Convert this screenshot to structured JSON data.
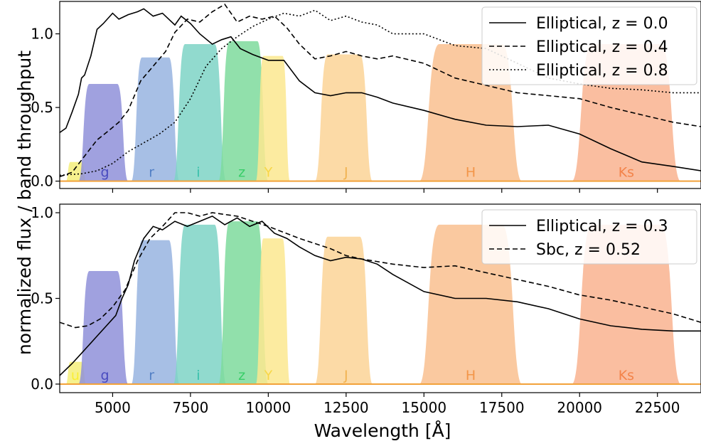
{
  "xlabel": "Wavelength [Å]",
  "ylabel": "normalized flux / band throughput",
  "chart_data": [
    {
      "type": "line",
      "panel": "top",
      "xlim": [
        3300,
        23900
      ],
      "ylim": [
        -0.05,
        1.22
      ],
      "xticks": [
        5000,
        7500,
        10000,
        12500,
        15000,
        17500,
        20000,
        22500
      ],
      "yticks": [
        0.0,
        0.5,
        1.0
      ],
      "ytick_labels": [
        "0.0",
        "0.5",
        "1.0"
      ],
      "legend_placement": "top-right",
      "grid": false,
      "bands": [
        {
          "name": "u",
          "label": "",
          "color": "#f5ee7a",
          "center": 3800,
          "low": 3500,
          "high": 4150,
          "level": 0.13
        },
        {
          "name": "g",
          "label": "g",
          "color": "#8f90d9",
          "center": 4750,
          "low": 3900,
          "high": 5500,
          "level": 0.66
        },
        {
          "name": "r",
          "label": "r",
          "color": "#98b4e0",
          "center": 6250,
          "low": 5600,
          "high": 7150,
          "level": 0.84
        },
        {
          "name": "i",
          "label": "i",
          "color": "#7ed3c6",
          "center": 7750,
          "low": 6950,
          "high": 8650,
          "level": 0.93
        },
        {
          "name": "z",
          "label": "z",
          "color": "#7edb9c",
          "center": 9150,
          "low": 8400,
          "high": 10000,
          "level": 0.95
        },
        {
          "name": "Y",
          "label": "Y",
          "color": "#fbe88f",
          "center": 10000,
          "low": 9600,
          "high": 10700,
          "level": 0.85
        },
        {
          "name": "J",
          "label": "J",
          "color": "#fbd497",
          "center": 12500,
          "low": 11500,
          "high": 13350,
          "level": 0.86
        },
        {
          "name": "H",
          "label": "H",
          "color": "#f9bf8f",
          "center": 16500,
          "low": 14850,
          "high": 18150,
          "level": 0.93
        },
        {
          "name": "Ks",
          "label": "Ks",
          "color": "#f9b38f",
          "center": 21500,
          "low": 19750,
          "high": 23250,
          "level": 0.93
        }
      ],
      "series": [
        {
          "name": "Elliptical, z = 0.0",
          "style": "solid",
          "x": [
            3300,
            3500,
            3700,
            3900,
            4000,
            4100,
            4300,
            4500,
            4700,
            5000,
            5200,
            5500,
            5800,
            6000,
            6300,
            6600,
            7000,
            7200,
            7500,
            7800,
            8200,
            8500,
            8800,
            9100,
            9500,
            10000,
            10500,
            11000,
            11500,
            12000,
            12500,
            13000,
            13500,
            14000,
            15000,
            16000,
            17000,
            18000,
            19000,
            20000,
            21000,
            22000,
            23000,
            23900
          ],
          "y": [
            0.33,
            0.36,
            0.47,
            0.59,
            0.7,
            0.72,
            0.85,
            1.03,
            1.07,
            1.14,
            1.1,
            1.13,
            1.15,
            1.17,
            1.12,
            1.14,
            1.06,
            1.12,
            1.07,
            1.0,
            0.93,
            0.96,
            0.98,
            0.9,
            0.86,
            0.82,
            0.82,
            0.68,
            0.6,
            0.58,
            0.6,
            0.6,
            0.57,
            0.53,
            0.48,
            0.42,
            0.38,
            0.37,
            0.38,
            0.32,
            0.22,
            0.13,
            0.1,
            0.07
          ]
        },
        {
          "name": "Elliptical, z = 0.4",
          "style": "dashed",
          "x": [
            3300,
            3700,
            4100,
            4500,
            4800,
            5200,
            5500,
            5900,
            6300,
            6700,
            7000,
            7400,
            7800,
            8200,
            8600,
            9000,
            9400,
            9800,
            10200,
            10600,
            11000,
            11500,
            12000,
            12500,
            13000,
            13500,
            14000,
            15000,
            16000,
            17000,
            18000,
            19000,
            20000,
            21000,
            22000,
            23000,
            23900
          ],
          "y": [
            0.03,
            0.06,
            0.17,
            0.28,
            0.33,
            0.4,
            0.48,
            0.68,
            0.78,
            0.88,
            1.01,
            1.1,
            1.08,
            1.15,
            1.2,
            1.08,
            1.12,
            1.1,
            1.12,
            1.04,
            0.93,
            0.83,
            0.85,
            0.88,
            0.85,
            0.83,
            0.85,
            0.8,
            0.7,
            0.65,
            0.6,
            0.58,
            0.56,
            0.5,
            0.45,
            0.4,
            0.37
          ]
        },
        {
          "name": "Elliptical, z = 0.8",
          "style": "dotted",
          "x": [
            3300,
            4000,
            4500,
            5000,
            5500,
            6000,
            6500,
            7000,
            7500,
            8000,
            8500,
            9000,
            9500,
            10000,
            10500,
            11000,
            11500,
            12000,
            12500,
            13000,
            13500,
            14000,
            15000,
            16000,
            17000,
            18000,
            19000,
            20000,
            21000,
            22000,
            23000,
            23900
          ],
          "y": [
            0.04,
            0.05,
            0.07,
            0.12,
            0.2,
            0.26,
            0.32,
            0.4,
            0.56,
            0.78,
            0.9,
            0.98,
            1.05,
            1.1,
            1.14,
            1.12,
            1.16,
            1.09,
            1.12,
            1.08,
            1.06,
            1.0,
            1.0,
            0.92,
            0.9,
            0.8,
            0.7,
            0.66,
            0.63,
            0.62,
            0.6,
            0.6
          ]
        }
      ]
    },
    {
      "type": "line",
      "panel": "bottom",
      "xlim": [
        3300,
        23900
      ],
      "ylim": [
        -0.05,
        1.05
      ],
      "xticks": [
        5000,
        7500,
        10000,
        12500,
        15000,
        17500,
        20000,
        22500
      ],
      "xtick_labels": [
        "5000",
        "7500",
        "10000",
        "12500",
        "15000",
        "17500",
        "20000",
        "22500"
      ],
      "yticks": [
        0.0,
        0.5,
        1.0
      ],
      "ytick_labels": [
        "0.0",
        "0.5",
        "1.0"
      ],
      "legend_placement": "top-right",
      "grid": false,
      "bands": [
        {
          "name": "u",
          "label": "u",
          "color": "#f5ee7a",
          "center": 3800,
          "low": 3500,
          "high": 4150,
          "level": 0.13
        },
        {
          "name": "g",
          "label": "g",
          "color": "#8f90d9",
          "center": 4750,
          "low": 3900,
          "high": 5500,
          "level": 0.66
        },
        {
          "name": "r",
          "label": "r",
          "color": "#98b4e0",
          "center": 6250,
          "low": 5600,
          "high": 7150,
          "level": 0.84
        },
        {
          "name": "i",
          "label": "i",
          "color": "#7ed3c6",
          "center": 7750,
          "low": 6950,
          "high": 8650,
          "level": 0.93
        },
        {
          "name": "z",
          "label": "z",
          "color": "#7edb9c",
          "center": 9150,
          "low": 8400,
          "high": 10000,
          "level": 0.95
        },
        {
          "name": "Y",
          "label": "Y",
          "color": "#fbe88f",
          "center": 10000,
          "low": 9600,
          "high": 10700,
          "level": 0.85
        },
        {
          "name": "J",
          "label": "J",
          "color": "#fbd497",
          "center": 12500,
          "low": 11500,
          "high": 13350,
          "level": 0.86
        },
        {
          "name": "H",
          "label": "H",
          "color": "#f9bf8f",
          "center": 16500,
          "low": 14850,
          "high": 18150,
          "level": 0.93
        },
        {
          "name": "Ks",
          "label": "Ks",
          "color": "#f9b38f",
          "center": 21500,
          "low": 19750,
          "high": 23250,
          "level": 0.93
        }
      ],
      "series": [
        {
          "name": "Elliptical, z = 0.3",
          "style": "solid",
          "x": [
            3300,
            3700,
            4000,
            4200,
            4500,
            4800,
            5100,
            5300,
            5500,
            5700,
            6000,
            6300,
            6600,
            7000,
            7400,
            7800,
            8200,
            8600,
            9000,
            9400,
            9800,
            10200,
            10600,
            11000,
            11500,
            12000,
            12500,
            13000,
            13500,
            14000,
            15000,
            16000,
            17000,
            18000,
            19000,
            20000,
            21000,
            22000,
            23000,
            23900
          ],
          "y": [
            0.05,
            0.12,
            0.18,
            0.22,
            0.28,
            0.34,
            0.4,
            0.5,
            0.58,
            0.72,
            0.85,
            0.92,
            0.9,
            0.95,
            0.92,
            0.95,
            0.98,
            0.93,
            0.97,
            0.92,
            0.95,
            0.88,
            0.85,
            0.8,
            0.75,
            0.72,
            0.74,
            0.73,
            0.7,
            0.64,
            0.54,
            0.5,
            0.5,
            0.48,
            0.44,
            0.38,
            0.34,
            0.32,
            0.31,
            0.31
          ]
        },
        {
          "name": "Sbc, z = 0.52",
          "style": "dashed",
          "x": [
            3300,
            3800,
            4200,
            4600,
            5000,
            5400,
            5800,
            6200,
            6600,
            7000,
            7400,
            7800,
            8200,
            8600,
            9000,
            9500,
            10000,
            11000,
            12000,
            12500,
            13000,
            14000,
            15000,
            16000,
            17000,
            18000,
            19000,
            20000,
            21000,
            22000,
            23000,
            23900
          ],
          "y": [
            0.36,
            0.33,
            0.34,
            0.38,
            0.45,
            0.55,
            0.72,
            0.85,
            0.92,
            1.0,
            1.0,
            0.98,
            1.0,
            0.99,
            0.98,
            0.95,
            0.92,
            0.85,
            0.79,
            0.75,
            0.73,
            0.7,
            0.68,
            0.69,
            0.65,
            0.61,
            0.57,
            0.52,
            0.49,
            0.45,
            0.41,
            0.36
          ]
        }
      ]
    }
  ],
  "legend_top": [
    "Elliptical, z = 0.0",
    "Elliptical, z = 0.4",
    "Elliptical, z = 0.8"
  ],
  "legend_bottom": [
    "Elliptical, z = 0.3",
    "Sbc, z = 0.52"
  ],
  "colors": {
    "axis": "#000000",
    "band_label_defaults": "matches band fill, darker"
  }
}
